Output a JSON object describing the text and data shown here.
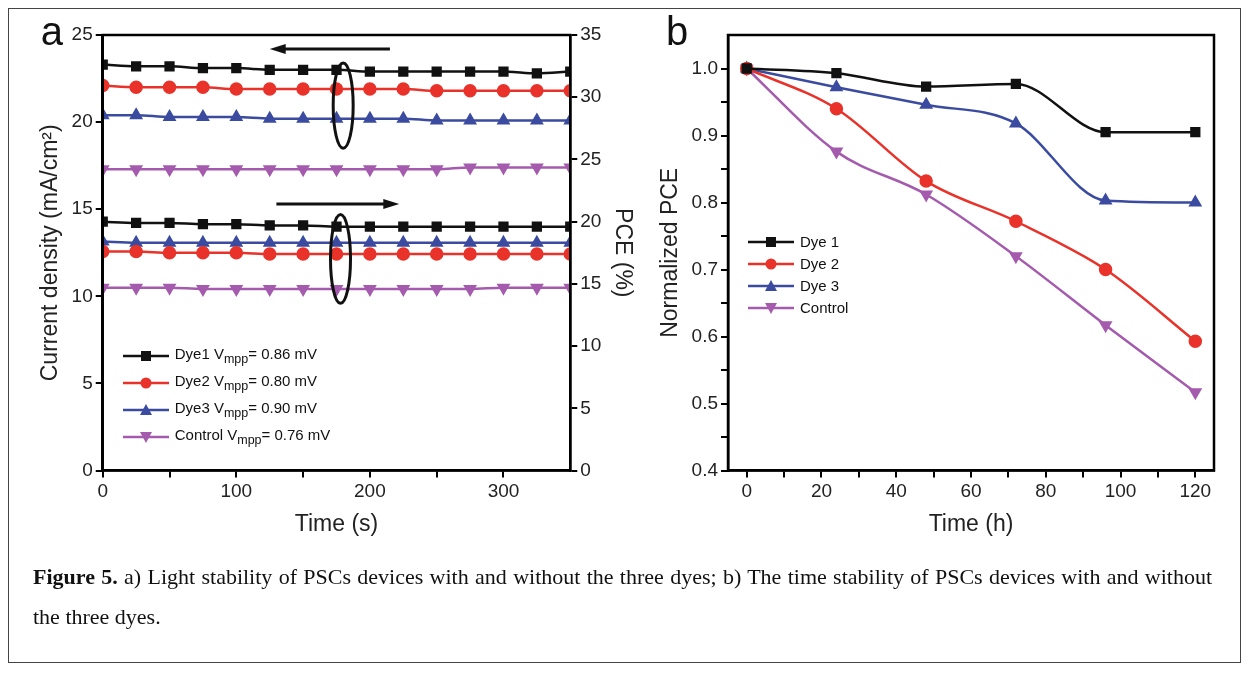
{
  "chart_data": [
    {
      "type": "line",
      "title": "a",
      "xlabel": "Time (s)",
      "ylabel": "Current density (mA/cm²)",
      "y2label": "PCE (%)",
      "x": [
        0,
        25,
        50,
        75,
        100,
        125,
        150,
        175,
        200,
        225,
        250,
        275,
        300,
        325,
        350
      ],
      "xlim": [
        0,
        350
      ],
      "xticks": [
        0,
        {
          "value": 50,
          "label": null
        },
        100,
        {
          "value": 150,
          "label": null
        },
        200,
        {
          "value": 250,
          "label": null
        },
        300
      ],
      "ylim": [
        0,
        25
      ],
      "yticks": [
        0,
        5,
        10,
        15,
        20,
        25
      ],
      "y2lim": [
        0,
        35
      ],
      "y2ticks": [
        0,
        5,
        10,
        15,
        20,
        25,
        30,
        35
      ],
      "legend": "bottom left",
      "series": [
        {
          "name": "Dye1  V$_{mpp}$= 0.86 mV",
          "color": "#111111",
          "marker": "square",
          "values": [
            23.3,
            23.2,
            23.2,
            23.1,
            23.1,
            23.0,
            23.0,
            23.0,
            22.9,
            22.9,
            22.9,
            22.9,
            22.9,
            22.8,
            22.9
          ]
        },
        {
          "name": "Dye2  V$_{mpp}$= 0.80 mV",
          "color": "#e8322a",
          "marker": "circle",
          "values": [
            22.1,
            22.0,
            22.0,
            22.0,
            21.9,
            21.9,
            21.9,
            21.9,
            21.9,
            21.9,
            21.8,
            21.8,
            21.8,
            21.8,
            21.8
          ]
        },
        {
          "name": "Dye3  V$_{mpp}$= 0.90 mV",
          "color": "#3a4ba0",
          "marker": "triangle",
          "values": [
            20.4,
            20.4,
            20.3,
            20.3,
            20.3,
            20.2,
            20.2,
            20.2,
            20.2,
            20.2,
            20.1,
            20.1,
            20.1,
            20.1,
            20.1
          ]
        },
        {
          "name": "Control V$_{mpp}$= 0.76 mV",
          "color": "#a55bad",
          "marker": "triangle-down",
          "values": [
            17.3,
            17.3,
            17.3,
            17.3,
            17.3,
            17.3,
            17.3,
            17.3,
            17.3,
            17.3,
            17.3,
            17.4,
            17.4,
            17.4,
            17.4
          ]
        },
        {
          "color": "#111111",
          "marker": "square",
          "axis": "y2",
          "values": [
            20.0,
            19.9,
            19.9,
            19.8,
            19.8,
            19.7,
            19.7,
            19.6,
            19.6,
            19.6,
            19.6,
            19.6,
            19.6,
            19.6,
            19.6
          ]
        },
        {
          "color": "#e8322a",
          "marker": "circle",
          "axis": "y2",
          "values": [
            17.6,
            17.6,
            17.5,
            17.5,
            17.5,
            17.4,
            17.4,
            17.4,
            17.4,
            17.4,
            17.4,
            17.4,
            17.4,
            17.4,
            17.4
          ]
        },
        {
          "color": "#3a4ba0",
          "marker": "triangle",
          "axis": "y2",
          "values": [
            18.4,
            18.3,
            18.3,
            18.3,
            18.3,
            18.3,
            18.3,
            18.3,
            18.3,
            18.3,
            18.3,
            18.3,
            18.3,
            18.3,
            18.3
          ]
        },
        {
          "color": "#a55bad",
          "marker": "triangle-down",
          "axis": "y2",
          "values": [
            14.7,
            14.7,
            14.7,
            14.6,
            14.6,
            14.6,
            14.6,
            14.6,
            14.6,
            14.6,
            14.6,
            14.6,
            14.7,
            14.7,
            14.7
          ]
        }
      ]
    },
    {
      "type": "line",
      "title": "b",
      "xlabel": "Time (h)",
      "ylabel": "Normalized PCE",
      "x": [
        0,
        24,
        48,
        72,
        96,
        120
      ],
      "xlim": [
        -5,
        125
      ],
      "xticks": [
        0,
        {
          "value": 10,
          "label": null
        },
        20,
        {
          "value": 30,
          "label": null
        },
        40,
        {
          "value": 50,
          "label": null
        },
        60,
        {
          "value": 70,
          "label": null
        },
        80,
        {
          "value": 90,
          "label": null
        },
        100,
        {
          "value": 110,
          "label": null
        },
        120
      ],
      "ylim": [
        0.4,
        1.05
      ],
      "yticks": [
        0.4,
        {
          "value": 0.45,
          "label": null
        },
        0.5,
        {
          "value": 0.55,
          "label": null
        },
        0.6,
        {
          "value": 0.65,
          "label": null
        },
        0.7,
        {
          "value": 0.75,
          "label": null
        },
        0.8,
        {
          "value": 0.85,
          "label": null
        },
        0.9,
        {
          "value": 0.95,
          "label": null
        },
        {
          "value": 1.0,
          "label": "1.0"
        }
      ],
      "legend": "left",
      "annotations": [
        "Figure 5.",
        "a) Light stability of PSCs devices with and without the three dyes; b) The time stability of PSCs devices with and without the three dyes."
      ],
      "series": [
        {
          "name": "Dye 1",
          "color": "#111111",
          "marker": "square",
          "values": [
            1.0,
            0.993,
            0.973,
            0.977,
            0.905,
            0.905
          ]
        },
        {
          "name": "Dye 2",
          "color": "#e8322a",
          "marker": "circle",
          "values": [
            1.0,
            0.94,
            0.832,
            0.772,
            0.7,
            0.593
          ]
        },
        {
          "name": "Dye 3",
          "color": "#3a4ba0",
          "marker": "triangle",
          "values": [
            1.0,
            0.972,
            0.946,
            0.918,
            0.803,
            0.8
          ]
        },
        {
          "name": "Control",
          "color": "#a55bad",
          "marker": "triangle-down",
          "values": [
            1.0,
            0.876,
            0.812,
            0.72,
            0.617,
            0.517
          ]
        }
      ]
    }
  ]
}
